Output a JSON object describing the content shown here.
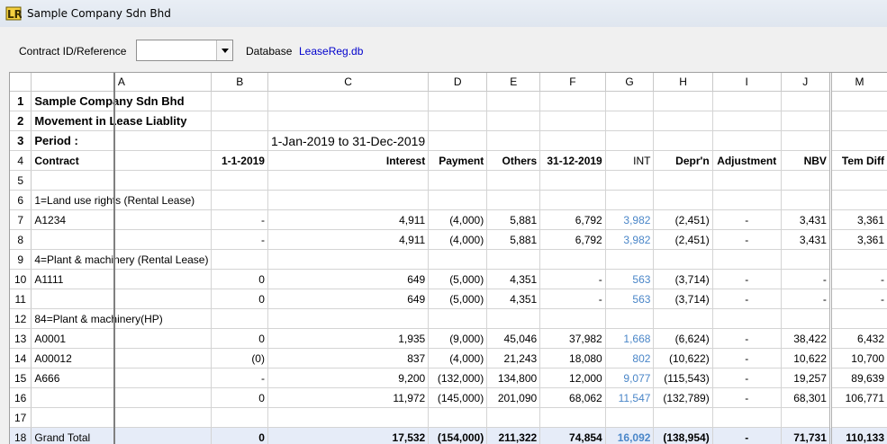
{
  "window": {
    "title": "Sample Company Sdn Bhd"
  },
  "toolbar": {
    "contract_label": "Contract ID/Reference",
    "contract_value": "",
    "database_label": "Database",
    "database_value": "LeaseReg.db"
  },
  "sheet": {
    "columns": [
      "A",
      "B",
      "C",
      "D",
      "E",
      "F",
      "G",
      "H",
      "I",
      "J",
      "M"
    ],
    "rows": [
      {
        "n": "1",
        "cells": [
          "Sample Company Sdn Bhd",
          "",
          "",
          "",
          "",
          "",
          "",
          "",
          "",
          "",
          ""
        ]
      },
      {
        "n": "2",
        "cells": [
          "Movement in Lease Liablity",
          "",
          "",
          "",
          "",
          "",
          "",
          "",
          "",
          "",
          ""
        ]
      },
      {
        "n": "3",
        "cells": [
          "Period :",
          "",
          "1-Jan-2019 to 31-Dec-2019",
          "",
          "",
          "",
          "",
          "",
          "",
          "",
          ""
        ]
      },
      {
        "n": "4",
        "cells": [
          "Contract",
          "1-1-2019",
          "Interest",
          "Payment",
          "Others",
          "31-12-2019",
          "INT",
          "Depr'n",
          "Adjustment",
          "NBV",
          "Tem Diff"
        ]
      },
      {
        "n": "5",
        "cells": [
          "",
          "",
          "",
          "",
          "",
          "",
          "",
          "",
          "",
          "",
          ""
        ]
      },
      {
        "n": "6",
        "cells": [
          "1=Land use rights (Rental Lease)",
          "",
          "",
          "",
          "",
          "",
          "",
          "",
          "",
          "",
          ""
        ]
      },
      {
        "n": "7",
        "cells": [
          "A1234",
          "-",
          "4,911",
          "(4,000)",
          "5,881",
          "6,792",
          "3,982",
          "(2,451)",
          "-",
          "3,431",
          "3,361"
        ]
      },
      {
        "n": "8",
        "cells": [
          "",
          "-",
          "4,911",
          "(4,000)",
          "5,881",
          "6,792",
          "3,982",
          "(2,451)",
          "-",
          "3,431",
          "3,361"
        ]
      },
      {
        "n": "9",
        "cells": [
          "4=Plant & machinery (Rental Lease)",
          "",
          "",
          "",
          "",
          "",
          "",
          "",
          "",
          "",
          ""
        ]
      },
      {
        "n": "10",
        "cells": [
          "A1111",
          "0",
          "649",
          "(5,000)",
          "4,351",
          "-",
          "563",
          "(3,714)",
          "-",
          "-",
          "-"
        ]
      },
      {
        "n": "11",
        "cells": [
          "",
          "0",
          "649",
          "(5,000)",
          "4,351",
          "-",
          "563",
          "(3,714)",
          "-",
          "-",
          "-"
        ]
      },
      {
        "n": "12",
        "cells": [
          "84=Plant & machinery(HP)",
          "",
          "",
          "",
          "",
          "",
          "",
          "",
          "",
          "",
          ""
        ]
      },
      {
        "n": "13",
        "cells": [
          "A0001",
          "0",
          "1,935",
          "(9,000)",
          "45,046",
          "37,982",
          "1,668",
          "(6,624)",
          "-",
          "38,422",
          "6,432"
        ]
      },
      {
        "n": "14",
        "cells": [
          "A00012",
          "(0)",
          "837",
          "(4,000)",
          "21,243",
          "18,080",
          "802",
          "(10,622)",
          "-",
          "10,622",
          "10,700"
        ]
      },
      {
        "n": "15",
        "cells": [
          "A666",
          "-",
          "9,200",
          "(132,000)",
          "134,800",
          "12,000",
          "9,077",
          "(115,543)",
          "-",
          "19,257",
          "89,639"
        ]
      },
      {
        "n": "16",
        "cells": [
          "",
          "0",
          "11,972",
          "(145,000)",
          "201,090",
          "68,062",
          "11,547",
          "(132,789)",
          "-",
          "68,301",
          "106,771"
        ]
      },
      {
        "n": "17",
        "cells": [
          "",
          "",
          "",
          "",
          "",
          "",
          "",
          "",
          "",
          "",
          ""
        ]
      },
      {
        "n": "18",
        "cells": [
          "Grand Total",
          "0",
          "17,532",
          "(154,000)",
          "211,322",
          "74,854",
          "16,092",
          "(138,954)",
          "-",
          "71,731",
          "110,133"
        ]
      }
    ]
  },
  "colors": {
    "int_blue": "#4a86c8",
    "total_bg": "#e6ecf8",
    "db_link": "#0000cc"
  }
}
